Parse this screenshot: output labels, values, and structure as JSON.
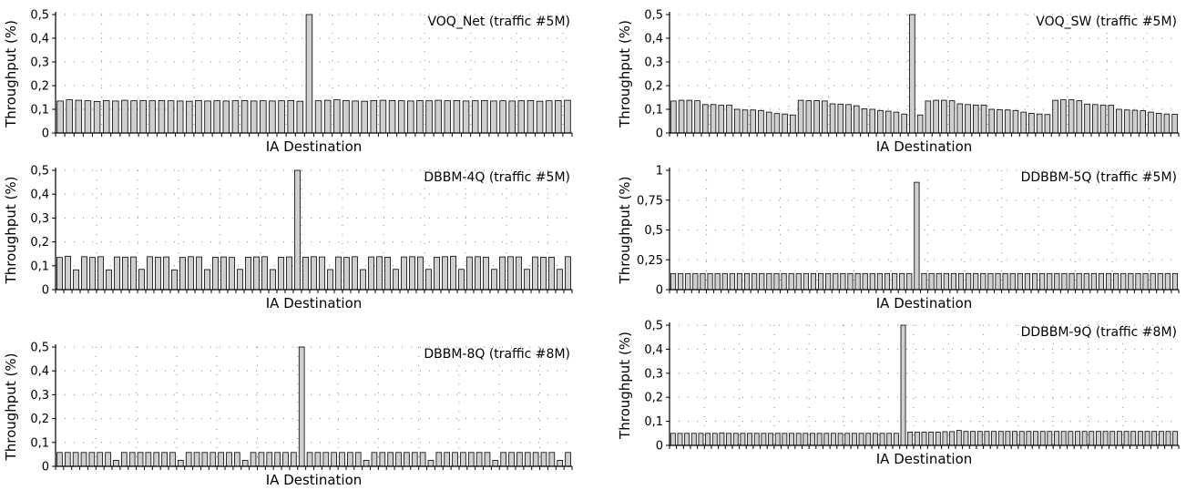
{
  "chart_data": [
    {
      "type": "bar",
      "title": "VOQ_Net (traffic #5M)",
      "xlabel": "IA Destination",
      "ylabel": "Throughput (%)",
      "ylim": [
        0,
        0.5
      ],
      "yticks": [
        "0",
        "0,1",
        "0,2",
        "0,3",
        "0,4",
        "0,5"
      ],
      "grid": true,
      "values": [
        0.135,
        0.14,
        0.138,
        0.136,
        0.133,
        0.137,
        0.135,
        0.138,
        0.136,
        0.137,
        0.136,
        0.137,
        0.136,
        0.135,
        0.134,
        0.137,
        0.135,
        0.136,
        0.135,
        0.136,
        0.137,
        0.135,
        0.136,
        0.135,
        0.136,
        0.137,
        0.134,
        0.5,
        0.136,
        0.138,
        0.14,
        0.137,
        0.135,
        0.134,
        0.137,
        0.138,
        0.137,
        0.136,
        0.135,
        0.137,
        0.136,
        0.138,
        0.136,
        0.137,
        0.135,
        0.136,
        0.137,
        0.135,
        0.136,
        0.135,
        0.136,
        0.137,
        0.134,
        0.136,
        0.137,
        0.138
      ]
    },
    {
      "type": "bar",
      "title": "VOQ_SW (traffic #5M)",
      "xlabel": "IA Destination",
      "ylabel": "Throughput (%)",
      "ylim": [
        0,
        0.5
      ],
      "yticks": [
        "0",
        "0,1",
        "0,2",
        "0,3",
        "0,4",
        "0,5"
      ],
      "grid": true,
      "values": [
        0.135,
        0.138,
        0.138,
        0.136,
        0.12,
        0.12,
        0.117,
        0.118,
        0.1,
        0.097,
        0.097,
        0.095,
        0.088,
        0.082,
        0.08,
        0.076,
        0.138,
        0.136,
        0.137,
        0.135,
        0.123,
        0.122,
        0.12,
        0.115,
        0.102,
        0.1,
        0.095,
        0.092,
        0.088,
        0.08,
        0.5,
        0.076,
        0.135,
        0.138,
        0.138,
        0.136,
        0.123,
        0.12,
        0.118,
        0.118,
        0.1,
        0.098,
        0.097,
        0.095,
        0.088,
        0.083,
        0.08,
        0.078,
        0.138,
        0.14,
        0.14,
        0.136,
        0.122,
        0.12,
        0.118,
        0.117,
        0.1,
        0.097,
        0.096,
        0.094,
        0.088,
        0.083,
        0.08,
        0.079
      ]
    },
    {
      "type": "bar",
      "title": "DBBM-4Q (traffic #5M)",
      "xlabel": "IA Destination",
      "ylabel": "Throughput (%)",
      "ylim": [
        0,
        0.5
      ],
      "yticks": [
        "0",
        "0,1",
        "0,2",
        "0,3",
        "0,4",
        "0,5"
      ],
      "grid": true,
      "values": [
        0.135,
        0.14,
        0.083,
        0.138,
        0.135,
        0.138,
        0.083,
        0.137,
        0.136,
        0.137,
        0.085,
        0.138,
        0.136,
        0.137,
        0.083,
        0.135,
        0.138,
        0.137,
        0.084,
        0.136,
        0.137,
        0.135,
        0.085,
        0.136,
        0.137,
        0.138,
        0.084,
        0.136,
        0.137,
        0.5,
        0.136,
        0.138,
        0.137,
        0.084,
        0.137,
        0.135,
        0.138,
        0.084,
        0.137,
        0.138,
        0.136,
        0.085,
        0.137,
        0.138,
        0.137,
        0.085,
        0.136,
        0.138,
        0.14,
        0.085,
        0.137,
        0.138,
        0.136,
        0.085,
        0.137,
        0.138,
        0.137,
        0.085,
        0.137,
        0.136,
        0.136,
        0.085,
        0.138
      ]
    },
    {
      "type": "bar",
      "title": "DDBBM-5Q (traffic #5M)",
      "xlabel": "IA Destination",
      "ylabel": "Throughput (%)",
      "ylim": [
        0,
        1
      ],
      "yticks": [
        "0",
        "0,25",
        "0,5",
        "0,75",
        "1"
      ],
      "grid": true,
      "values": [
        0.135,
        0.135,
        0.135,
        0.135,
        0.135,
        0.135,
        0.135,
        0.135,
        0.135,
        0.135,
        0.135,
        0.135,
        0.135,
        0.135,
        0.135,
        0.135,
        0.135,
        0.135,
        0.135,
        0.135,
        0.135,
        0.135,
        0.135,
        0.135,
        0.135,
        0.135,
        0.135,
        0.135,
        0.135,
        0.135,
        0.135,
        0.135,
        0.135,
        0.9,
        0.135,
        0.135,
        0.135,
        0.135,
        0.135,
        0.135,
        0.135,
        0.135,
        0.135,
        0.135,
        0.135,
        0.135,
        0.135,
        0.135,
        0.135,
        0.135,
        0.135,
        0.135,
        0.135,
        0.135,
        0.135,
        0.135,
        0.135,
        0.135,
        0.135,
        0.135,
        0.135,
        0.135,
        0.135,
        0.135,
        0.135,
        0.135,
        0.135,
        0.135,
        0.135
      ]
    },
    {
      "type": "bar",
      "title": "DBBM-8Q (traffic #8M)",
      "xlabel": "IA Destination",
      "ylabel": "Throughput (%)",
      "ylim": [
        0,
        0.5
      ],
      "yticks": [
        "0",
        "0,1",
        "0,2",
        "0,3",
        "0,4",
        "0,5"
      ],
      "grid": true,
      "values": [
        0.058,
        0.058,
        0.058,
        0.058,
        0.058,
        0.058,
        0.058,
        0.025,
        0.058,
        0.058,
        0.058,
        0.058,
        0.058,
        0.058,
        0.058,
        0.025,
        0.058,
        0.058,
        0.058,
        0.058,
        0.058,
        0.058,
        0.058,
        0.025,
        0.058,
        0.058,
        0.058,
        0.058,
        0.058,
        0.058,
        0.5,
        0.058,
        0.058,
        0.058,
        0.058,
        0.058,
        0.058,
        0.058,
        0.025,
        0.058,
        0.058,
        0.058,
        0.058,
        0.058,
        0.058,
        0.058,
        0.025,
        0.058,
        0.058,
        0.058,
        0.058,
        0.058,
        0.058,
        0.058,
        0.025,
        0.058,
        0.058,
        0.058,
        0.058,
        0.058,
        0.058,
        0.058,
        0.025,
        0.058
      ]
    },
    {
      "type": "bar",
      "title": "DDBBM-9Q (traffic #8M)",
      "xlabel": "IA Destination",
      "ylabel": "Throughput (%)",
      "ylim": [
        0,
        0.5
      ],
      "yticks": [
        "0",
        "0,1",
        "0,2",
        "0,3",
        "0,4",
        "0,5"
      ],
      "grid": true,
      "values": [
        0.05,
        0.05,
        0.05,
        0.05,
        0.05,
        0.05,
        0.05,
        0.052,
        0.05,
        0.05,
        0.05,
        0.05,
        0.05,
        0.05,
        0.05,
        0.05,
        0.05,
        0.05,
        0.05,
        0.05,
        0.05,
        0.05,
        0.05,
        0.05,
        0.05,
        0.05,
        0.05,
        0.05,
        0.05,
        0.05,
        0.05,
        0.05,
        0.05,
        0.5,
        0.055,
        0.055,
        0.055,
        0.055,
        0.055,
        0.057,
        0.057,
        0.062,
        0.058,
        0.058,
        0.058,
        0.058,
        0.058,
        0.058,
        0.058,
        0.058,
        0.058,
        0.058,
        0.058,
        0.058,
        0.058,
        0.058,
        0.058,
        0.058,
        0.058,
        0.058,
        0.058,
        0.058,
        0.058,
        0.058,
        0.058,
        0.058,
        0.058,
        0.058,
        0.058,
        0.058,
        0.058,
        0.058,
        0.058
      ]
    }
  ]
}
